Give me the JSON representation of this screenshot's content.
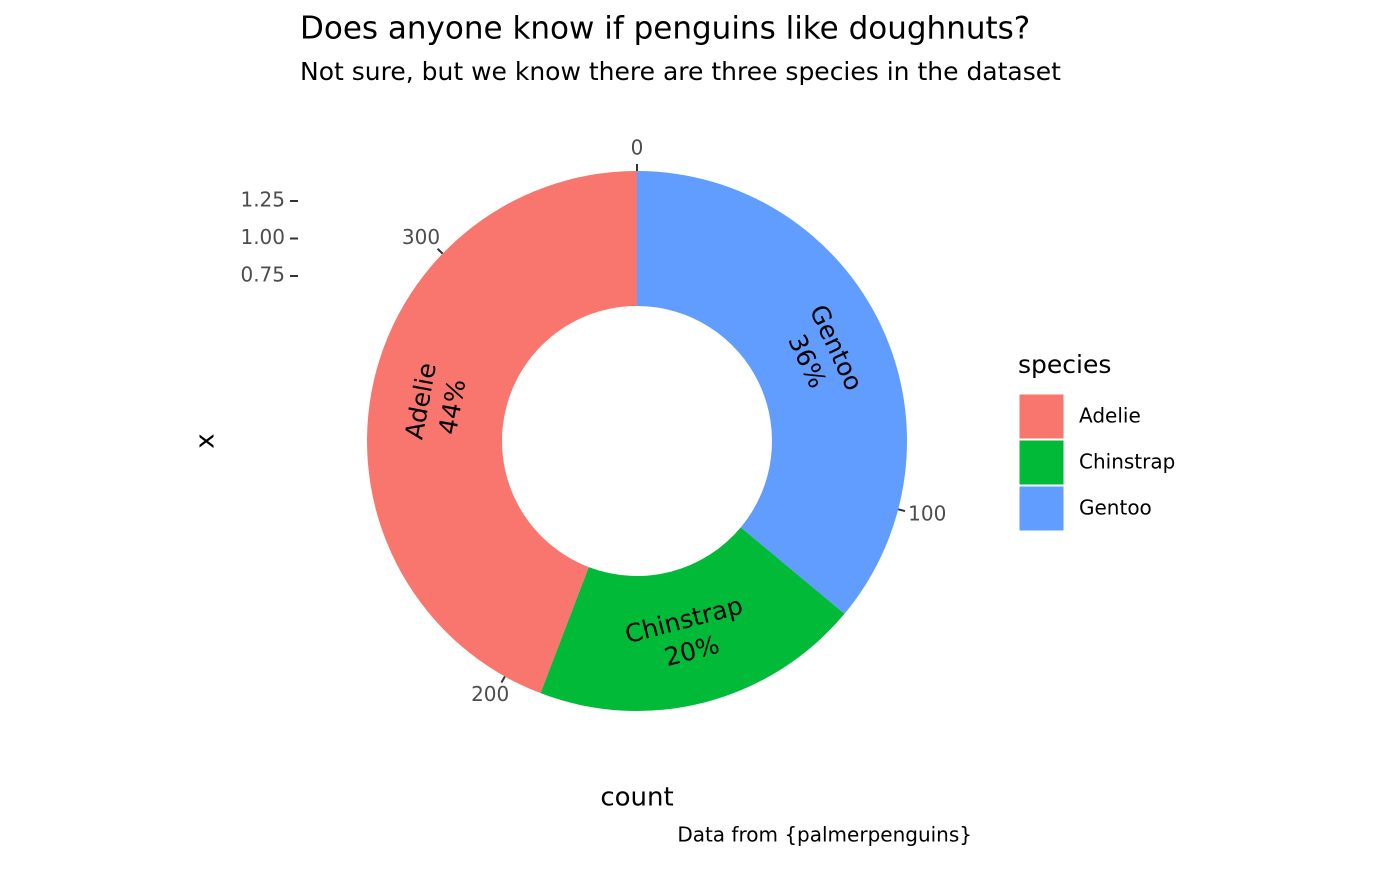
{
  "chart_data": {
    "type": "donut",
    "title": "Does anyone know if penguins like doughnuts?",
    "subtitle": "Not sure, but we know there are three species in the dataset",
    "caption": "Data from {palmerpenguins}",
    "x_label": "count",
    "y_label": "x",
    "legend_title": "species",
    "legend_position": "right",
    "categories": [
      "Adelie",
      "Chinstrap",
      "Gentoo"
    ],
    "values": [
      152,
      68,
      124
    ],
    "value_labels": [
      "44%",
      "20%",
      "36%"
    ],
    "colors": [
      "#F8766D",
      "#00BA38",
      "#619CFF"
    ],
    "xlim": [
      0,
      344
    ],
    "xticks": [
      0,
      100,
      200,
      300
    ],
    "ylim": [
      -0.35,
      1.45
    ],
    "yticks": [
      {
        "value": 0.75,
        "label": "0.75"
      },
      {
        "value": 1.0,
        "label": "1.00"
      },
      {
        "value": 1.25,
        "label": "1.25"
      }
    ]
  }
}
